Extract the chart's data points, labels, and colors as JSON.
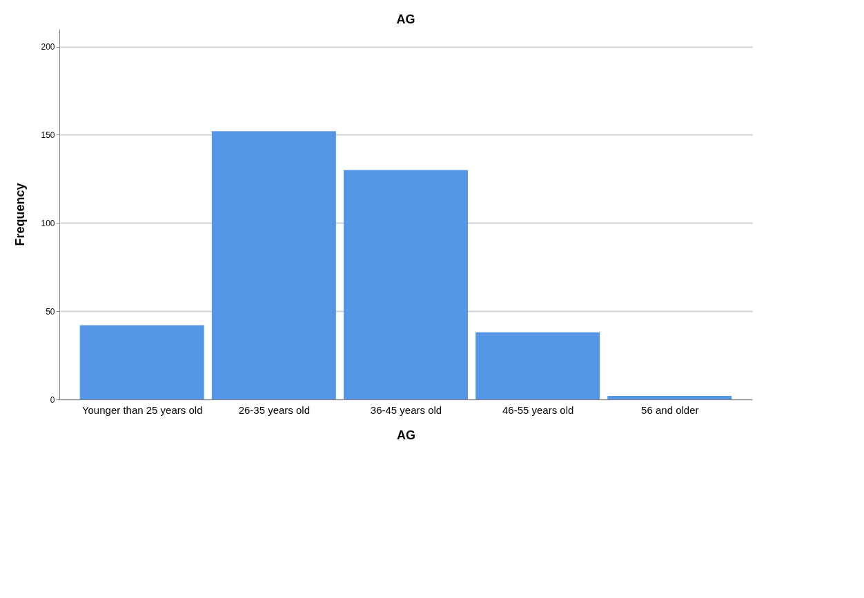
{
  "chart_data": {
    "type": "bar",
    "title": "AG",
    "xlabel": "AG",
    "ylabel": "Frequency",
    "categories": [
      "Younger than 25 years old",
      "26-35 years old",
      "36-45 years old",
      "46-55 years old",
      "56 and older"
    ],
    "values": [
      42,
      152,
      130,
      38,
      2
    ],
    "color": "#5596e6",
    "ylim": [
      0,
      210
    ],
    "yticks": [
      0,
      50,
      100,
      150,
      200
    ],
    "grid": "y"
  }
}
